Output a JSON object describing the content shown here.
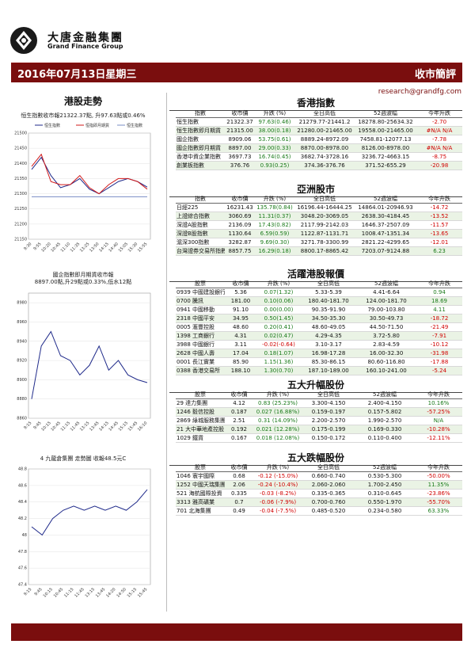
{
  "header": {
    "brand_cn": "大唐金融集團",
    "brand_en": "Grand Finance Group",
    "date": "2016年07月13日星期三",
    "title": "收市簡評",
    "email": "research@grandfg.com",
    "accent": "#7a0e0e"
  },
  "left": {
    "section_title": "港股走勢",
    "chart1_caption": "恒生指數收市報21322.37點, 升97.63點或0.46%",
    "chart2_caption1": "國企指數即月期貨收市報",
    "chart2_caption2": "8897.00點,升29點或0.33%,低水12點",
    "chart3_caption": "4 九龍倉集團 走勢圖 收報48.5元C"
  },
  "sections": {
    "hk_index": {
      "title": "香港指數",
      "headers": [
        "指數",
        "收市價",
        "升跌 (%)",
        "全日高低",
        "52週波幅",
        "今年升跌"
      ],
      "rows": [
        [
          "恒生指數",
          "21322.37",
          "97.63(0.46)",
          "21279.77-21441.2",
          "18278.80-25634.32",
          "-2.70"
        ],
        [
          "恒生指數即月期貨",
          "21315.00",
          "38.00(0.18)",
          "21280.00-21465.00",
          "19558.00-21465.00",
          "#N/A N/A"
        ],
        [
          "國企指數",
          "8909.06",
          "53.75(0.61)",
          "8889.24-8972.09",
          "7458.81-12077.13",
          "-7.78"
        ],
        [
          "國企指數即月期貨",
          "8897.00",
          "29.00(0.33)",
          "8870.00-8978.00",
          "8126.00-8978.00",
          "#N/A N/A"
        ],
        [
          "香港中資企業指數",
          "3697.73",
          "16.74(0.45)",
          "3682.74-3728.16",
          "3236.72-4663.15",
          "-8.75"
        ],
        [
          "創業板指數",
          "376.76",
          "0.93(0.25)",
          "374.36-376.76",
          "371.52-655.29",
          "-20.98"
        ]
      ]
    },
    "asia": {
      "title": "亞洲股市",
      "headers": [
        "指數",
        "收市價",
        "升跌 (%)",
        "全日高低",
        "52週波幅",
        "今年升跌"
      ],
      "rows": [
        [
          "日經225",
          "16231.43",
          "135.78(0.84)",
          "16196.44-16444.25",
          "14864.01-20946.93",
          "-14.72"
        ],
        [
          "上證綜合指數",
          "3060.69",
          "11.31(0.37)",
          "3048.20-3069.05",
          "2638.30-4184.45",
          "-13.52"
        ],
        [
          "深證A股指數",
          "2136.09",
          "17.43(0.82)",
          "2117.99-2142.03",
          "1646.37-2507.09",
          "-11.57"
        ],
        [
          "深證B股指數",
          "1130.64",
          "6.59(0.59)",
          "1122.87-1131.71",
          "1008.47-1351.34",
          "-13.65"
        ],
        [
          "滬深300指數",
          "3282.87",
          "9.69(0.30)",
          "3271.78-3300.99",
          "2821.22-4299.65",
          "-12.01"
        ],
        [
          "台灣證券交易所指數",
          "8857.75",
          "16.29(0.18)",
          "8800.17-8865.42",
          "7203.07-9124.88",
          "6.23"
        ]
      ]
    },
    "active": {
      "title": "活躍港股報價",
      "headers": [
        "股票",
        "收市價",
        "升跌 (%)",
        "全日高低",
        "52週波幅",
        "今年升跌"
      ],
      "rows": [
        [
          "0939 中國建設銀行",
          "5.36",
          "0.07(1.32)",
          "5.33-5.39",
          "4.41-6.64",
          "0.94"
        ],
        [
          "0700 騰訊",
          "181.00",
          "0.10(0.06)",
          "180.40-181.70",
          "124.00-181.70",
          "18.69"
        ],
        [
          "0941 中國移動",
          "91.10",
          "0.00(0.00)",
          "90.35-91.90",
          "79.00-103.80",
          "4.11"
        ],
        [
          "2318 中國平安",
          "34.95",
          "0.50(1.45)",
          "34.50-35.30",
          "30.50-49.73",
          "-18.72"
        ],
        [
          "0005 滙豐控股",
          "48.60",
          "0.20(0.41)",
          "48.60-49.05",
          "44.50-71.50",
          "-21.49"
        ],
        [
          "1398 工商銀行",
          "4.31",
          "0.02(0.47)",
          "4.29-4.35",
          "3.72-5.80",
          "-7.91"
        ],
        [
          "3988 中國銀行",
          "3.11",
          "-0.02(-0.64)",
          "3.10-3.17",
          "2.83-4.59",
          "-10.12"
        ],
        [
          "2628 中國人壽",
          "17.04",
          "0.18(1.07)",
          "16.98-17.28",
          "16.00-32.30",
          "-31.98"
        ],
        [
          "0001 長江實業",
          "85.90",
          "1.15(1.36)",
          "85.30-86.15",
          "80.60-116.80",
          "-17.88"
        ],
        [
          "0388 香港交易所",
          "188.10",
          "1.30(0.70)",
          "187.10-189.00",
          "160.10-241.00",
          "-5.24"
        ]
      ]
    },
    "gainers": {
      "title": "五大升幅股份",
      "headers": [
        "股票",
        "收市價",
        "升跌 (%)",
        "全日高低",
        "52週波幅",
        "今年升跌"
      ],
      "rows": [
        [
          "29 達力集團",
          "4.12",
          "0.83 (25.23%)",
          "3.300-4.150",
          "2.400-4.150",
          "10.16%"
        ],
        [
          "1246 毅信控股",
          "0.187",
          "0.027 (16.88%)",
          "0.159-0.197",
          "0.157-5.802",
          "-57.25%"
        ],
        [
          "2869 綠城服務集團",
          "2.51",
          "0.31 (14.09%)",
          "2.200-2.570",
          "1.990-2.570",
          "N/A"
        ],
        [
          "21 大中華地產控股",
          "0.192",
          "0.021 (12.28%)",
          "0.175-0.199",
          "0.169-0.330",
          "-10.28%"
        ],
        [
          "1029 鐵貨",
          "0.167",
          "0.018 (12.08%)",
          "0.150-0.172",
          "0.110-0.400",
          "-12.11%"
        ]
      ]
    },
    "losers": {
      "title": "五大跌幅股份",
      "headers": [
        "股票",
        "收市價",
        "升跌 (%)",
        "全日高低",
        "52週波幅",
        "今年升跌"
      ],
      "rows": [
        [
          "1046 寰宇國際",
          "0.68",
          "-0.12 (-15.0%)",
          "0.660-0.740",
          "0.530-5.300",
          "-50.00%"
        ],
        [
          "1252 中國天瑞集團水",
          "2.06",
          "-0.24 (-10.4%)",
          "2.060-2.060",
          "1.700-2.450",
          "11.35%"
        ],
        [
          "521 海航國際投資",
          "0.335",
          "-0.03 (-8.2%)",
          "0.335-0.365",
          "0.310-0.645",
          "-23.86%"
        ],
        [
          "3313 雅高礦業",
          "0.7",
          "-0.06 (-7.9%)",
          "0.700-0.760",
          "0.550-1.970",
          "-55.70%"
        ],
        [
          "701 北海集團",
          "0.49",
          "-0.04 (-7.5%)",
          "0.485-0.520",
          "0.234-0.580",
          "63.33%"
        ]
      ]
    }
  },
  "chart_data": [
    {
      "type": "line",
      "x": [
        "9:30",
        "9:55",
        "10:20",
        "10:45",
        "11:10",
        "11:35",
        "13:25",
        "13:50",
        "14:15",
        "14:40",
        "15:05",
        "15:30",
        "15:55"
      ],
      "series": [
        {
          "name": "恒生指數",
          "color": "#1f2a8a",
          "values": [
            21380,
            21420,
            21360,
            21320,
            21330,
            21350,
            21315,
            21300,
            21320,
            21340,
            21350,
            21340,
            21322
          ]
        },
        {
          "name": "恒指即月期貨",
          "color": "#d11a1a",
          "values": [
            21390,
            21430,
            21340,
            21330,
            21330,
            21360,
            21320,
            21300,
            21330,
            21350,
            21350,
            21340,
            21315
          ]
        },
        {
          "name": "恒生指數",
          "color": "#7a8cc4",
          "values": [
            21290,
            21290,
            21290,
            21290,
            21290,
            21290,
            21290,
            21290,
            21290,
            21290,
            21290,
            21290,
            21290
          ]
        }
      ],
      "ylim": [
        21150,
        21500
      ],
      "yticks": [
        21500,
        21450,
        21400,
        21350,
        21300,
        21250,
        21200,
        21150
      ]
    },
    {
      "type": "line",
      "x": [
        "9:15",
        "9:45",
        "10:15",
        "10:45",
        "11:15",
        "11:45",
        "13:15",
        "13:45",
        "14:15",
        "14:45",
        "15:15",
        "15:45",
        "16:10"
      ],
      "series": [
        {
          "name": "國企指數即月期貨",
          "color": "#1f2a8a",
          "values": [
            8880,
            8935,
            8950,
            8925,
            8920,
            8905,
            8915,
            8935,
            8910,
            8920,
            8905,
            8900,
            8897
          ]
        }
      ],
      "ylim": [
        8860,
        8990
      ],
      "yticks": [
        8980,
        8960,
        8940,
        8920,
        8900,
        8880,
        8860
      ]
    },
    {
      "type": "line",
      "x": [
        "9:15",
        "9:45",
        "10:15",
        "10:45",
        "11:15",
        "11:45",
        "13:15",
        "13:45",
        "14:20",
        "14:50",
        "15:15",
        "15:45"
      ],
      "series": [
        {
          "name": "0004 九龍倉集團",
          "color": "#1f2a8a",
          "values": [
            48.1,
            48.0,
            48.2,
            48.3,
            48.35,
            48.3,
            48.35,
            48.3,
            48.35,
            48.3,
            48.4,
            48.55
          ]
        }
      ],
      "ylim": [
        47.4,
        48.8
      ],
      "yticks": [
        48.8,
        48.6,
        48.4,
        48.2,
        48.0,
        47.8,
        47.6,
        47.4
      ]
    }
  ]
}
